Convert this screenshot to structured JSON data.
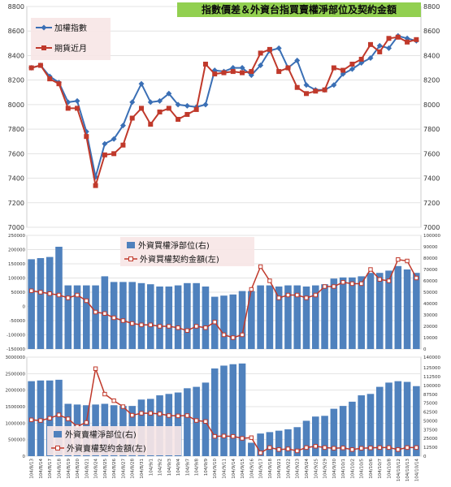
{
  "colors": {
    "index_line": "#3a6fb5",
    "futures_line": "#c0392b",
    "bar": "#4f81bd",
    "amount_line": "#c0392b",
    "title_bg": "#92d050",
    "plot_bg": "#ffffff",
    "grid": "#e3e3e3"
  },
  "chart_data": [
    {
      "type": "line",
      "title": "指數價差＆外資台指買賣權淨部位及契約金額",
      "x": [
        "104/8/13",
        "104/8/14",
        "104/8/17",
        "104/8/18",
        "104/8/19",
        "104/8/20",
        "104/8/21",
        "104/8/24",
        "104/8/25",
        "104/8/26",
        "104/8/27",
        "104/8/28",
        "104/8/31",
        "104/9/1",
        "104/9/2",
        "104/9/3",
        "104/9/4",
        "104/9/7",
        "104/9/8",
        "104/9/9",
        "104/9/10",
        "104/9/11",
        "104/9/14",
        "104/9/15",
        "104/9/16",
        "104/9/17",
        "104/9/18",
        "104/9/21",
        "104/9/22",
        "104/9/23",
        "104/9/24",
        "104/9/25",
        "104/9/29",
        "104/9/30",
        "104/10/1",
        "104/10/2",
        "104/10/5",
        "104/10/6",
        "104/10/7",
        "104/10/8",
        "104/10/12",
        "104/10/13",
        "104/10/14"
      ],
      "ylim": [
        7000,
        8800
      ],
      "y_ticks": [
        "7000",
        "7200",
        "7400",
        "7600",
        "7800",
        "8000",
        "8200",
        "8400",
        "8600",
        "8800"
      ],
      "legend_position": "top-left",
      "series": [
        {
          "name": "加權指數",
          "values": [
            8300,
            8320,
            8230,
            8180,
            8020,
            8030,
            7780,
            7410,
            7680,
            7720,
            7830,
            8020,
            8170,
            8020,
            8030,
            8090,
            8000,
            7990,
            7980,
            8000,
            8280,
            8270,
            8300,
            8300,
            8240,
            8320,
            8440,
            8460,
            8300,
            8360,
            8160,
            8120,
            8120,
            8160,
            8250,
            8290,
            8340,
            8380,
            8480,
            8460,
            8560,
            8540,
            8520
          ]
        },
        {
          "name": "期貨近月",
          "values": [
            8300,
            8320,
            8210,
            8170,
            7970,
            7970,
            7740,
            7340,
            7590,
            7600,
            7670,
            7890,
            7970,
            7840,
            7940,
            7970,
            7880,
            7920,
            7960,
            8330,
            8250,
            8260,
            8270,
            8260,
            8270,
            8420,
            8450,
            8270,
            8300,
            8140,
            8090,
            8110,
            8120,
            8300,
            8280,
            8330,
            8370,
            8490,
            8430,
            8540,
            8550,
            8510,
            8530
          ]
        }
      ]
    },
    {
      "type": "bar",
      "x": [
        "104/8/13",
        "104/8/14",
        "104/8/17",
        "104/8/18",
        "104/8/19",
        "104/8/20",
        "104/8/21",
        "104/8/24",
        "104/8/25",
        "104/8/26",
        "104/8/27",
        "104/8/28",
        "104/8/31",
        "104/9/1",
        "104/9/2",
        "104/9/3",
        "104/9/4",
        "104/9/7",
        "104/9/8",
        "104/9/9",
        "104/9/10",
        "104/9/11",
        "104/9/14",
        "104/9/15",
        "104/9/16",
        "104/9/17",
        "104/9/18",
        "104/9/21",
        "104/9/22",
        "104/9/23",
        "104/9/24",
        "104/9/25",
        "104/9/29",
        "104/9/30",
        "104/10/1",
        "104/10/2",
        "104/10/5",
        "104/10/6",
        "104/10/7",
        "104/10/8",
        "104/10/12",
        "104/10/13",
        "104/10/14"
      ],
      "ylim_left": [
        -150000,
        250000
      ],
      "y_ticks_left": [
        "250000",
        "200000",
        "150000",
        "100000",
        "50000",
        "0",
        "-50000",
        "-100000",
        "-150000"
      ],
      "ylim_right": [
        0,
        100000
      ],
      "y_ticks_right": [
        "100000",
        "90000",
        "80000",
        "70000",
        "60000",
        "50000",
        "40000",
        "30000",
        "20000",
        "10000",
        "0"
      ],
      "legend_position": "top-center",
      "series": [
        {
          "name": "外資買權淨部位(右)",
          "axis": "right",
          "type": "bar",
          "values": [
            79000,
            80000,
            81000,
            90000,
            56000,
            56000,
            56000,
            56000,
            64000,
            59000,
            59000,
            59000,
            58000,
            57000,
            55000,
            55000,
            56000,
            58000,
            58000,
            55000,
            46000,
            47000,
            48000,
            51000,
            51000,
            56000,
            56000,
            55000,
            56000,
            56000,
            55000,
            56000,
            57000,
            62000,
            63000,
            63000,
            64000,
            67000,
            67000,
            69000,
            73000,
            70000,
            67000
          ]
        },
        {
          "name": "外資買權契約金額(左)",
          "axis": "left",
          "type": "line",
          "values": [
            55000,
            50000,
            45000,
            40000,
            30000,
            40000,
            20000,
            -20000,
            -25000,
            -40000,
            -50000,
            -60000,
            -65000,
            -65000,
            -70000,
            -70000,
            -75000,
            -85000,
            -70000,
            -75000,
            -55000,
            -100000,
            -110000,
            -100000,
            60000,
            140000,
            90000,
            30000,
            40000,
            40000,
            30000,
            40000,
            70000,
            70000,
            85000,
            80000,
            80000,
            130000,
            95000,
            90000,
            165000,
            160000,
            100000
          ]
        }
      ]
    },
    {
      "type": "bar",
      "x": [
        "104/8/13",
        "104/8/14",
        "104/8/17",
        "104/8/18",
        "104/8/19",
        "104/8/20",
        "104/8/21",
        "104/8/24",
        "104/8/25",
        "104/8/26",
        "104/8/27",
        "104/8/28",
        "104/8/31",
        "104/9/1",
        "104/9/2",
        "104/9/3",
        "104/9/4",
        "104/9/7",
        "104/9/8",
        "104/9/9",
        "104/9/10",
        "104/9/11",
        "104/9/14",
        "104/9/15",
        "104/9/16",
        "104/9/17",
        "104/9/18",
        "104/9/21",
        "104/9/22",
        "104/9/23",
        "104/9/24",
        "104/9/25",
        "104/9/29",
        "104/9/30",
        "104/10/1",
        "104/10/2",
        "104/10/5",
        "104/10/6",
        "104/10/7",
        "104/10/8",
        "104/10/12",
        "104/10/13",
        "104/10/14"
      ],
      "ylim_left": [
        0,
        3000000
      ],
      "y_ticks_left": [
        "3000000",
        "2500000",
        "2000000",
        "1500000",
        "1000000",
        "500000",
        "0"
      ],
      "ylim_right": [
        0,
        140000
      ],
      "y_ticks_right": [
        "140000",
        "125000",
        "112500",
        "100000",
        "87500",
        "75000",
        "62500",
        "50000",
        "37500",
        "25000",
        "12500",
        "0"
      ],
      "legend_position": "bottom-left",
      "series": [
        {
          "name": "外資賣權淨部位(右)",
          "axis": "right",
          "type": "bar",
          "values": [
            106000,
            107000,
            107000,
            108000,
            74000,
            73000,
            72000,
            73000,
            74000,
            72000,
            71000,
            71000,
            80000,
            81000,
            86000,
            88000,
            90000,
            96000,
            98000,
            104000,
            124000,
            128000,
            130000,
            131000,
            19000,
            32000,
            34000,
            36000,
            38000,
            41000,
            50000,
            56000,
            57000,
            67000,
            71000,
            77000,
            86000,
            88000,
            98000,
            104000,
            106000,
            105000,
            99000
          ]
        },
        {
          "name": "外資賣權契約金額(左)",
          "axis": "left",
          "type": "line",
          "values": [
            1100000,
            1080000,
            1150000,
            1250000,
            1130000,
            900000,
            1020000,
            2650000,
            1880000,
            1680000,
            1500000,
            1240000,
            1300000,
            1300000,
            1280000,
            1230000,
            1220000,
            1230000,
            1080000,
            1050000,
            600000,
            610000,
            600000,
            540000,
            560000,
            100000,
            260000,
            200000,
            220000,
            160000,
            260000,
            300000,
            260000,
            240000,
            250000,
            200000,
            240000,
            250000,
            260000,
            260000,
            200000,
            260000,
            260000
          ]
        }
      ]
    }
  ]
}
